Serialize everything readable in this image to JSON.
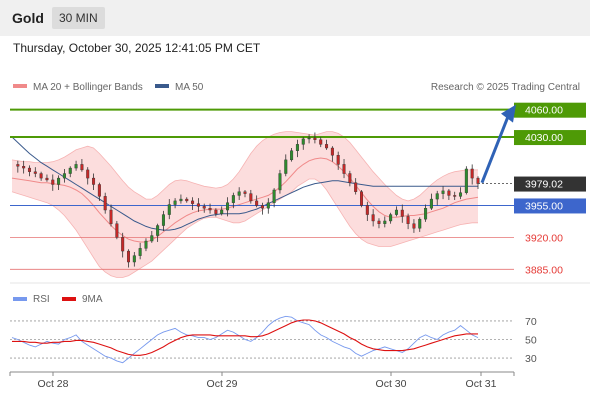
{
  "header": {
    "instrument": "Gold",
    "timeframe": "30 MIN",
    "datetime": "Thursday, October 30, 2025 12:41:05 PM CET",
    "credit": "Research © 2025 Trading Central"
  },
  "legend": {
    "ma20": "MA 20 + Bollinger Bands",
    "ma50": "MA 50",
    "rsi": "RSI",
    "rsi_ma": "9MA"
  },
  "colors": {
    "ma20": "#f08a8a",
    "bollinger_fill": "#fcd7d7",
    "ma50": "#3a5a8c",
    "resistance": "#4e9a06",
    "support": "#3d66cc",
    "support_weak": "#e57373",
    "price_badge": "#333333",
    "candle_up": "#2e8b2e",
    "candle_down": "#c62828",
    "arrow": "#2f62b6",
    "rsi": "#7799ee",
    "rsi_ma": "#dd1111"
  },
  "chart_data": [
    {
      "type": "candlestick",
      "title": "Gold 30 MIN",
      "ylim": [
        3870,
        4075
      ],
      "x_ticks": [
        "Oct 28",
        "Oct 29",
        "Oct 30",
        "Oct 31"
      ],
      "current_price": "3979.02",
      "levels": [
        {
          "label": "4060.00",
          "value": 4060,
          "kind": "resistance"
        },
        {
          "label": "4030.00",
          "value": 4030,
          "kind": "resistance"
        },
        {
          "label": "3955.00",
          "value": 3955,
          "kind": "pivot"
        },
        {
          "label": "3920.00",
          "value": 3920,
          "kind": "support"
        },
        {
          "label": "3885.00",
          "value": 3885,
          "kind": "support"
        }
      ],
      "forecast_arrow": {
        "from": 3980,
        "to": 4059
      },
      "close_path": [
        4000,
        3998,
        3996,
        3992,
        3990,
        3985,
        3983,
        3978,
        3985,
        3990,
        3996,
        4000,
        3994,
        3985,
        3978,
        3965,
        3950,
        3935,
        3920,
        3905,
        3893,
        3900,
        3908,
        3916,
        3922,
        3933,
        3945,
        3956,
        3960,
        3962,
        3960,
        3957,
        3954,
        3952,
        3950,
        3946,
        3950,
        3958,
        3966,
        3970,
        3968,
        3960,
        3955,
        3952,
        3958,
        3972,
        3990,
        4005,
        4015,
        4022,
        4028,
        4029,
        4027,
        4022,
        4018,
        4010,
        4000,
        3990,
        3980,
        3970,
        3955,
        3945,
        3938,
        3935,
        3938,
        3945,
        3950,
        3943,
        3935,
        3930,
        3940,
        3952,
        3962,
        3968,
        3971,
        3966,
        3965,
        3969,
        3995,
        3985,
        3979
      ],
      "ma20": [
        3985,
        3984,
        3983,
        3982,
        3981,
        3980,
        3980,
        3979,
        3978,
        3977,
        3975,
        3972,
        3968,
        3962,
        3955,
        3947,
        3940,
        3933,
        3927,
        3922,
        3918,
        3916,
        3915,
        3915,
        3917,
        3921,
        3926,
        3931,
        3936,
        3940,
        3944,
        3947,
        3949,
        3950,
        3951,
        3951,
        3951,
        3952,
        3954,
        3956,
        3958,
        3960,
        3962,
        3964,
        3966,
        3970,
        3975,
        3981,
        3988,
        3995,
        4000,
        4004,
        4006,
        4007,
        4006,
        4003,
        3998,
        3992,
        3985,
        3977,
        3969,
        3961,
        3954,
        3948,
        3944,
        3942,
        3942,
        3943,
        3944,
        3944,
        3945,
        3946,
        3948,
        3950,
        3952,
        3955,
        3958,
        3960,
        3962,
        3963,
        3964
      ],
      "bb_upper": [
        4005,
        4004,
        4003,
        4003,
        4002,
        4002,
        4002,
        4003,
        4005,
        4008,
        4012,
        4016,
        4018,
        4020,
        4018,
        4012,
        4005,
        3998,
        3990,
        3982,
        3975,
        3970,
        3966,
        3962,
        3962,
        3966,
        3972,
        3978,
        3982,
        3983,
        3982,
        3980,
        3978,
        3976,
        3975,
        3974,
        3975,
        3978,
        3984,
        3992,
        4002,
        4012,
        4020,
        4026,
        4030,
        4033,
        4035,
        4036,
        4036,
        4035,
        4034,
        4033,
        4032,
        4034,
        4036,
        4036,
        4034,
        4030,
        4024,
        4016,
        4008,
        4000,
        3992,
        3985,
        3978,
        3972,
        3966,
        3962,
        3960,
        3962,
        3966,
        3972,
        3978,
        3983,
        3987,
        3990,
        3992,
        3993,
        3994,
        3994,
        3994
      ],
      "bb_lower": [
        3970,
        3968,
        3966,
        3964,
        3962,
        3960,
        3958,
        3955,
        3950,
        3944,
        3936,
        3928,
        3918,
        3908,
        3898,
        3888,
        3882,
        3878,
        3876,
        3876,
        3878,
        3882,
        3886,
        3890,
        3894,
        3900,
        3906,
        3912,
        3918,
        3924,
        3930,
        3934,
        3938,
        3941,
        3942,
        3942,
        3940,
        3938,
        3936,
        3936,
        3938,
        3942,
        3946,
        3950,
        3954,
        3958,
        3962,
        3966,
        3970,
        3976,
        3980,
        3984,
        3984,
        3980,
        3972,
        3962,
        3952,
        3942,
        3932,
        3924,
        3918,
        3914,
        3912,
        3910,
        3910,
        3910,
        3912,
        3914,
        3916,
        3918,
        3920,
        3922,
        3924,
        3926,
        3928,
        3930,
        3932,
        3934,
        3935,
        3936,
        3936
      ],
      "ma50": [
        4030,
        4024,
        4018,
        4012,
        4007,
        4002,
        3998,
        3994,
        3990,
        3986,
        3982,
        3978,
        3974,
        3970,
        3966,
        3962,
        3958,
        3954,
        3950,
        3946,
        3942,
        3938,
        3935,
        3932,
        3930,
        3929,
        3928,
        3928,
        3929,
        3931,
        3934,
        3937,
        3940,
        3942,
        3944,
        3945,
        3946,
        3946,
        3946,
        3946,
        3947,
        3949,
        3951,
        3954,
        3957,
        3960,
        3963,
        3966,
        3969,
        3972,
        3975,
        3977,
        3979,
        3980,
        3981,
        3982,
        3982,
        3981,
        3980,
        3979,
        3978,
        3977,
        3976,
        3976,
        3976,
        3976,
        3976,
        3976,
        3976,
        3976,
        3976,
        3976,
        3976,
        3976,
        3976,
        3976,
        3976,
        3976,
        3976,
        3976,
        3976
      ]
    },
    {
      "type": "line",
      "title": "RSI",
      "ylim": [
        15,
        85
      ],
      "y_ticks": [
        "70",
        "50",
        "30"
      ],
      "series": [
        {
          "name": "RSI",
          "values": [
            52,
            50,
            47,
            44,
            42,
            45,
            48,
            46,
            45,
            50,
            52,
            55,
            48,
            44,
            40,
            36,
            32,
            30,
            27,
            25,
            30,
            35,
            40,
            45,
            50,
            55,
            58,
            60,
            62,
            58,
            55,
            54,
            52,
            52,
            50,
            52,
            56,
            60,
            58,
            54,
            50,
            48,
            52,
            58,
            65,
            70,
            73,
            75,
            74,
            70,
            68,
            66,
            60,
            55,
            52,
            48,
            45,
            42,
            40,
            35,
            32,
            35,
            38,
            40,
            42,
            40,
            38,
            36,
            40,
            46,
            52,
            55,
            52,
            50,
            55,
            58,
            60,
            65,
            60,
            55,
            52
          ]
        },
        {
          "name": "9MA",
          "values": [
            48,
            48,
            48,
            47,
            47,
            46,
            46,
            47,
            47,
            48,
            48,
            49,
            49,
            48,
            47,
            45,
            43,
            41,
            38,
            36,
            34,
            33,
            33,
            34,
            36,
            39,
            42,
            46,
            49,
            52,
            54,
            55,
            55,
            55,
            55,
            54,
            54,
            54,
            54,
            54,
            54,
            53,
            53,
            54,
            56,
            59,
            62,
            65,
            68,
            70,
            71,
            71,
            70,
            68,
            65,
            62,
            59,
            56,
            52,
            49,
            45,
            42,
            40,
            39,
            38,
            38,
            38,
            38,
            39,
            40,
            42,
            44,
            46,
            48,
            50,
            52,
            54,
            55,
            56,
            56,
            56
          ]
        }
      ]
    }
  ]
}
